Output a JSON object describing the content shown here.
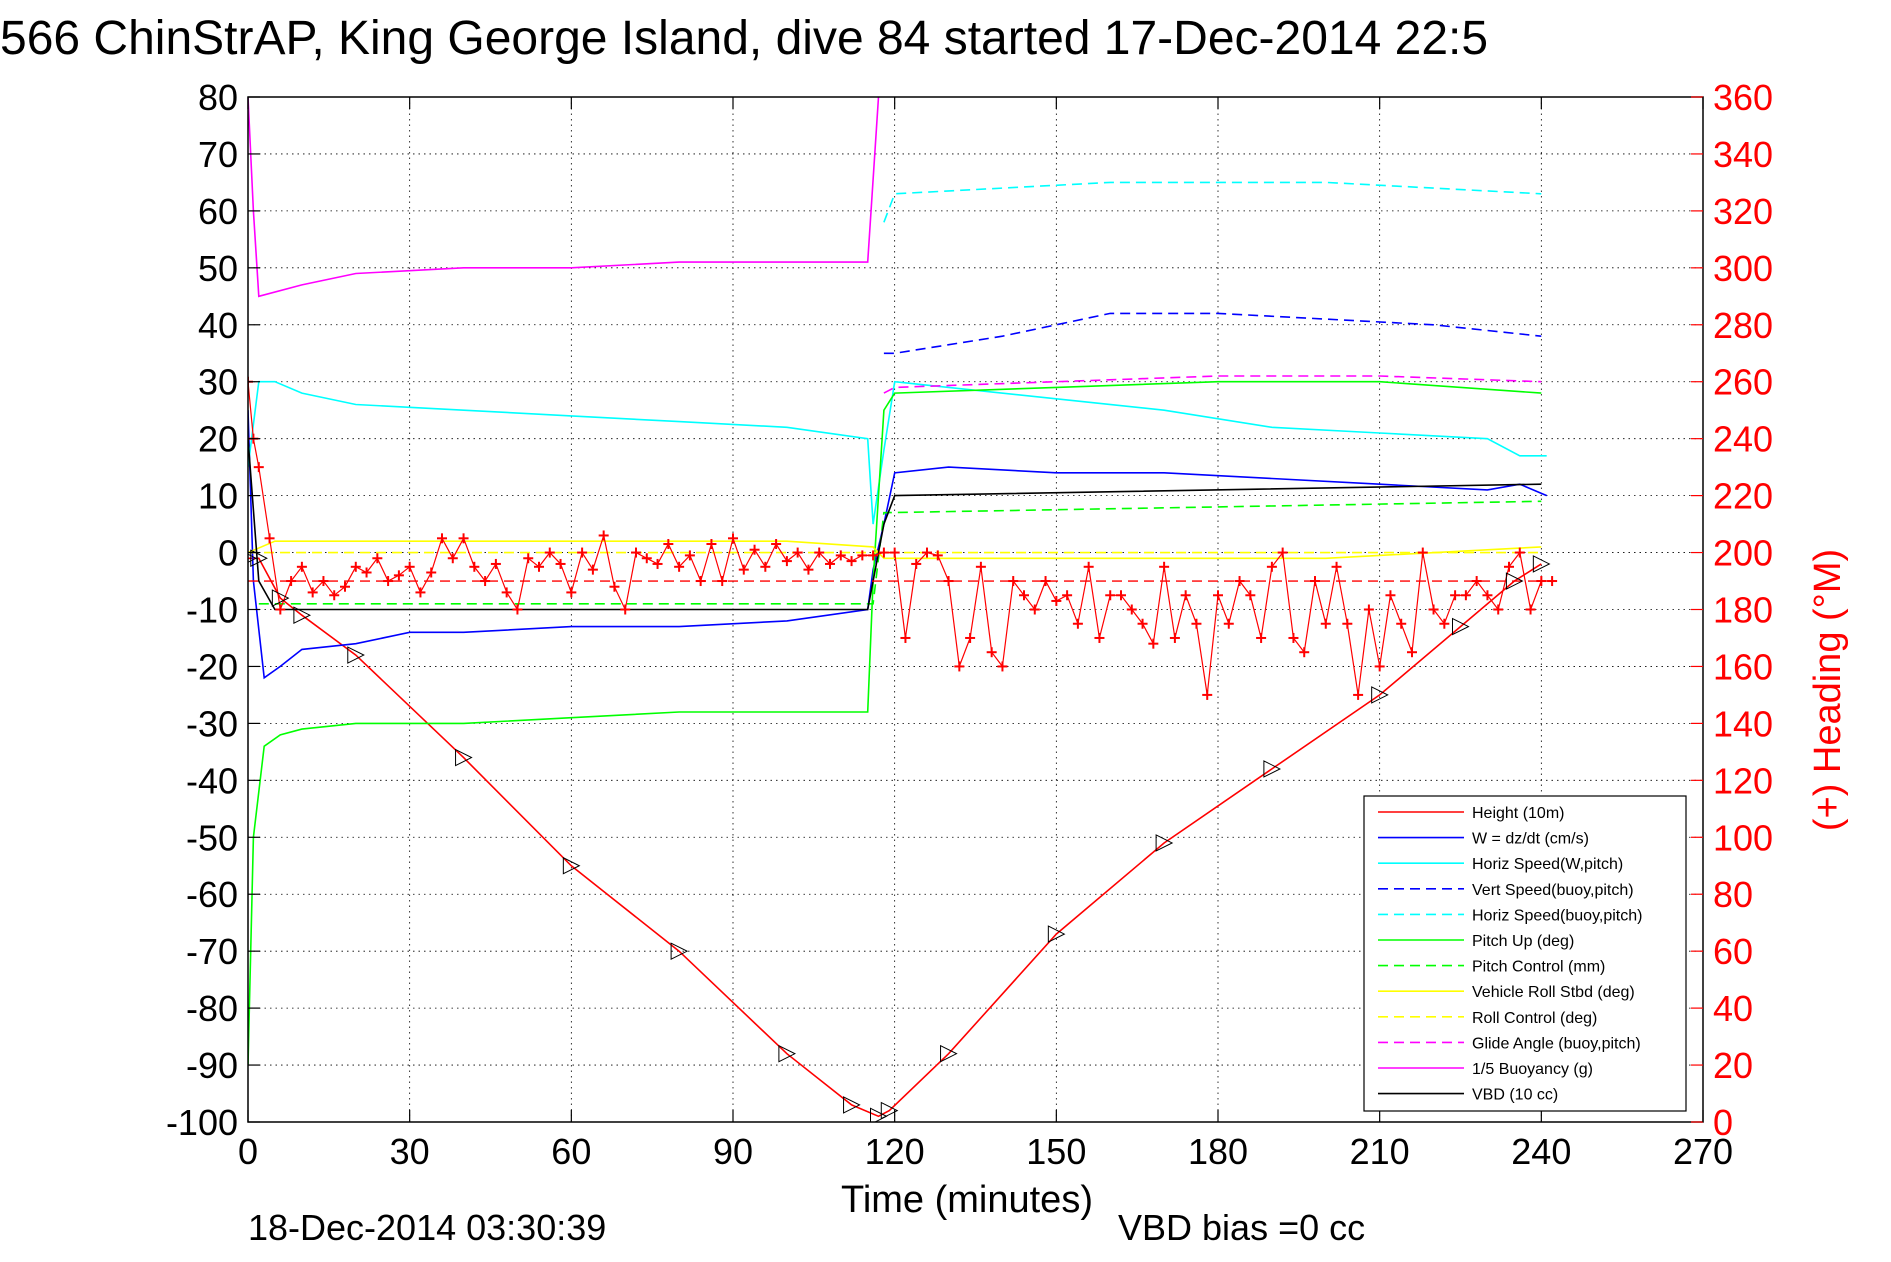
{
  "chart_data": {
    "type": "line",
    "title": "566 ChinStrAP, King George Island, dive 84 started 17-Dec-2014 22:5",
    "xlabel": "Time (minutes)",
    "ylabel_right": "(+) Heading (°M)",
    "xlim": [
      0,
      270
    ],
    "ylim_left": [
      -100,
      80
    ],
    "ylim_right": [
      0,
      360
    ],
    "x_ticks": [
      "0",
      "30",
      "60",
      "90",
      "120",
      "150",
      "180",
      "210",
      "240",
      "270"
    ],
    "y_ticks_left": [
      "80",
      "70",
      "60",
      "50",
      "40",
      "30",
      "20",
      "10",
      "0",
      "-10",
      "-20",
      "-30",
      "-40",
      "-50",
      "-60",
      "-70",
      "-80",
      "-90",
      "-100"
    ],
    "y_ticks_right": [
      "360",
      "340",
      "320",
      "300",
      "280",
      "260",
      "240",
      "220",
      "200",
      "180",
      "160",
      "140",
      "120",
      "100",
      "80",
      "60",
      "40",
      "20",
      "0"
    ],
    "grid": true,
    "legend_position": "bottom-right",
    "footer_date": "18-Dec-2014 03:30:39",
    "footer_bias": "VBD bias =0 cc",
    "series": [
      {
        "name": "Height (10m)",
        "color": "#ff0000",
        "style": "solid",
        "x": [
          0,
          2,
          6,
          10,
          20,
          40,
          60,
          80,
          100,
          112,
          117,
          119,
          130,
          150,
          170,
          190,
          210,
          225,
          235,
          240
        ],
        "y": [
          -1,
          -1,
          -8,
          -11,
          -18,
          -36,
          -55,
          -70,
          -88,
          -97,
          -99,
          -98,
          -88,
          -67,
          -51,
          -38,
          -25,
          -13,
          -5,
          -2
        ]
      },
      {
        "name": "W = dz/dt (cm/s)",
        "color": "#0000ff",
        "style": "solid",
        "x": [
          0,
          1,
          3,
          6,
          10,
          20,
          30,
          40,
          60,
          80,
          100,
          115,
          116,
          118,
          120,
          130,
          150,
          170,
          190,
          210,
          230,
          236,
          241
        ],
        "y": [
          25,
          -5,
          -22,
          -20,
          -17,
          -16,
          -14,
          -14,
          -13,
          -13,
          -12,
          -10,
          -3,
          5,
          14,
          15,
          14,
          14,
          13,
          12,
          11,
          12,
          10
        ]
      },
      {
        "name": "Horiz Speed(W,pitch)",
        "color": "#00ffff",
        "style": "solid",
        "x": [
          0,
          2,
          5,
          10,
          20,
          40,
          60,
          80,
          100,
          115,
          116,
          118,
          120,
          130,
          150,
          170,
          190,
          210,
          230,
          236,
          241
        ],
        "y": [
          15,
          30,
          30,
          28,
          26,
          25,
          24,
          23,
          22,
          20,
          5,
          18,
          30,
          29,
          27,
          25,
          22,
          21,
          20,
          17,
          17
        ]
      },
      {
        "name": "Vert Speed(buoy,pitch)",
        "color": "#0000ff",
        "style": "dashed",
        "x": [
          118,
          120,
          140,
          160,
          180,
          200,
          220,
          240
        ],
        "y": [
          35,
          35,
          38,
          42,
          42,
          41,
          40,
          38
        ]
      },
      {
        "name": "Horiz Speed(buoy,pitch)",
        "color": "#00ffff",
        "style": "dashed",
        "x": [
          118,
          120,
          140,
          160,
          180,
          200,
          220,
          240
        ],
        "y": [
          58,
          63,
          64,
          65,
          65,
          65,
          64,
          63
        ]
      },
      {
        "name": "Pitch Up (deg)",
        "color": "#00ff00",
        "style": "solid",
        "x": [
          0,
          1,
          3,
          6,
          10,
          20,
          40,
          60,
          80,
          100,
          115,
          116,
          118,
          120,
          150,
          180,
          210,
          240
        ],
        "y": [
          -90,
          -50,
          -34,
          -32,
          -31,
          -30,
          -30,
          -29,
          -28,
          -28,
          -28,
          -5,
          25,
          28,
          29,
          30,
          30,
          28
        ]
      },
      {
        "name": "Pitch Control (mm)",
        "color": "#00ff00",
        "style": "dashed",
        "x": [
          2,
          116,
          118,
          240
        ],
        "y": [
          -9,
          -9,
          7,
          9
        ]
      },
      {
        "name": "Vehicle Roll Stbd (deg)",
        "color": "#ffff00",
        "style": "solid",
        "x": [
          0,
          5,
          20,
          60,
          100,
          116,
          118,
          150,
          200,
          240
        ],
        "y": [
          0,
          2,
          2,
          2,
          2,
          1,
          -1,
          -1,
          -1,
          1
        ]
      },
      {
        "name": "Roll Control (deg)",
        "color": "#ffff00",
        "style": "dashed",
        "x": [
          0,
          240
        ],
        "y": [
          0,
          0
        ]
      },
      {
        "name": "Glide Angle (buoy,pitch)",
        "color": "#ff00ff",
        "style": "dashed",
        "x": [
          118,
          120,
          150,
          180,
          210,
          240
        ],
        "y": [
          28,
          29,
          30,
          31,
          31,
          30
        ]
      },
      {
        "name": "1/5 Buoyancy (g)",
        "color": "#ff00ff",
        "style": "solid",
        "x": [
          0,
          1,
          2,
          10,
          20,
          40,
          60,
          80,
          100,
          115,
          117
        ],
        "y": [
          80,
          60,
          45,
          47,
          49,
          50,
          50,
          51,
          51,
          51,
          80
        ]
      },
      {
        "name": "VBD (10 cc)",
        "color": "#000000",
        "style": "solid",
        "x": [
          0,
          2,
          5,
          115,
          118,
          120,
          240
        ],
        "y": [
          20,
          -5,
          -10,
          -10,
          5,
          10,
          12
        ]
      }
    ],
    "heading_series": {
      "color": "#ff0000",
      "marker": "+",
      "axis": "right",
      "x": [
        0,
        1,
        2,
        4,
        6,
        8,
        10,
        12,
        14,
        16,
        18,
        20,
        22,
        24,
        26,
        28,
        30,
        32,
        34,
        36,
        38,
        40,
        42,
        44,
        46,
        48,
        50,
        52,
        54,
        56,
        58,
        60,
        62,
        64,
        66,
        68,
        70,
        72,
        74,
        76,
        78,
        80,
        82,
        84,
        86,
        88,
        90,
        92,
        94,
        96,
        98,
        100,
        102,
        104,
        106,
        108,
        110,
        112,
        114,
        116,
        118,
        120,
        122,
        124,
        126,
        128,
        130,
        132,
        134,
        136,
        138,
        140,
        142,
        144,
        146,
        148,
        150,
        152,
        154,
        156,
        158,
        160,
        162,
        164,
        166,
        168,
        170,
        172,
        174,
        176,
        178,
        180,
        182,
        184,
        186,
        188,
        190,
        192,
        194,
        196,
        198,
        200,
        202,
        204,
        206,
        208,
        210,
        212,
        214,
        216,
        218,
        220,
        222,
        224,
        226,
        228,
        230,
        232,
        234,
        236,
        238,
        240,
        242
      ],
      "y": [
        260,
        240,
        230,
        205,
        180,
        190,
        195,
        186,
        190,
        185,
        188,
        195,
        193,
        198,
        190,
        192,
        195,
        186,
        193,
        205,
        198,
        205,
        195,
        190,
        196,
        186,
        180,
        198,
        195,
        200,
        196,
        186,
        200,
        194,
        206,
        188,
        180,
        200,
        198,
        196,
        203,
        195,
        199,
        190,
        203,
        190,
        205,
        194,
        201,
        195,
        203,
        197,
        200,
        194,
        200,
        196,
        199,
        197,
        199,
        199,
        200,
        200,
        170,
        196,
        200,
        199,
        190,
        160,
        170,
        195,
        165,
        160,
        190,
        185,
        180,
        190,
        183,
        185,
        175,
        195,
        170,
        185,
        185,
        180,
        175,
        168,
        195,
        170,
        185,
        175,
        150,
        185,
        175,
        190,
        185,
        170,
        195,
        200,
        170,
        165,
        190,
        175,
        195,
        175,
        150,
        180,
        160,
        185,
        175,
        165,
        200,
        180,
        175,
        185,
        185,
        190,
        185,
        180,
        195,
        200,
        180,
        190,
        190
      ]
    },
    "heading_dashed": {
      "color": "#ff0000",
      "y_left": -5
    }
  }
}
